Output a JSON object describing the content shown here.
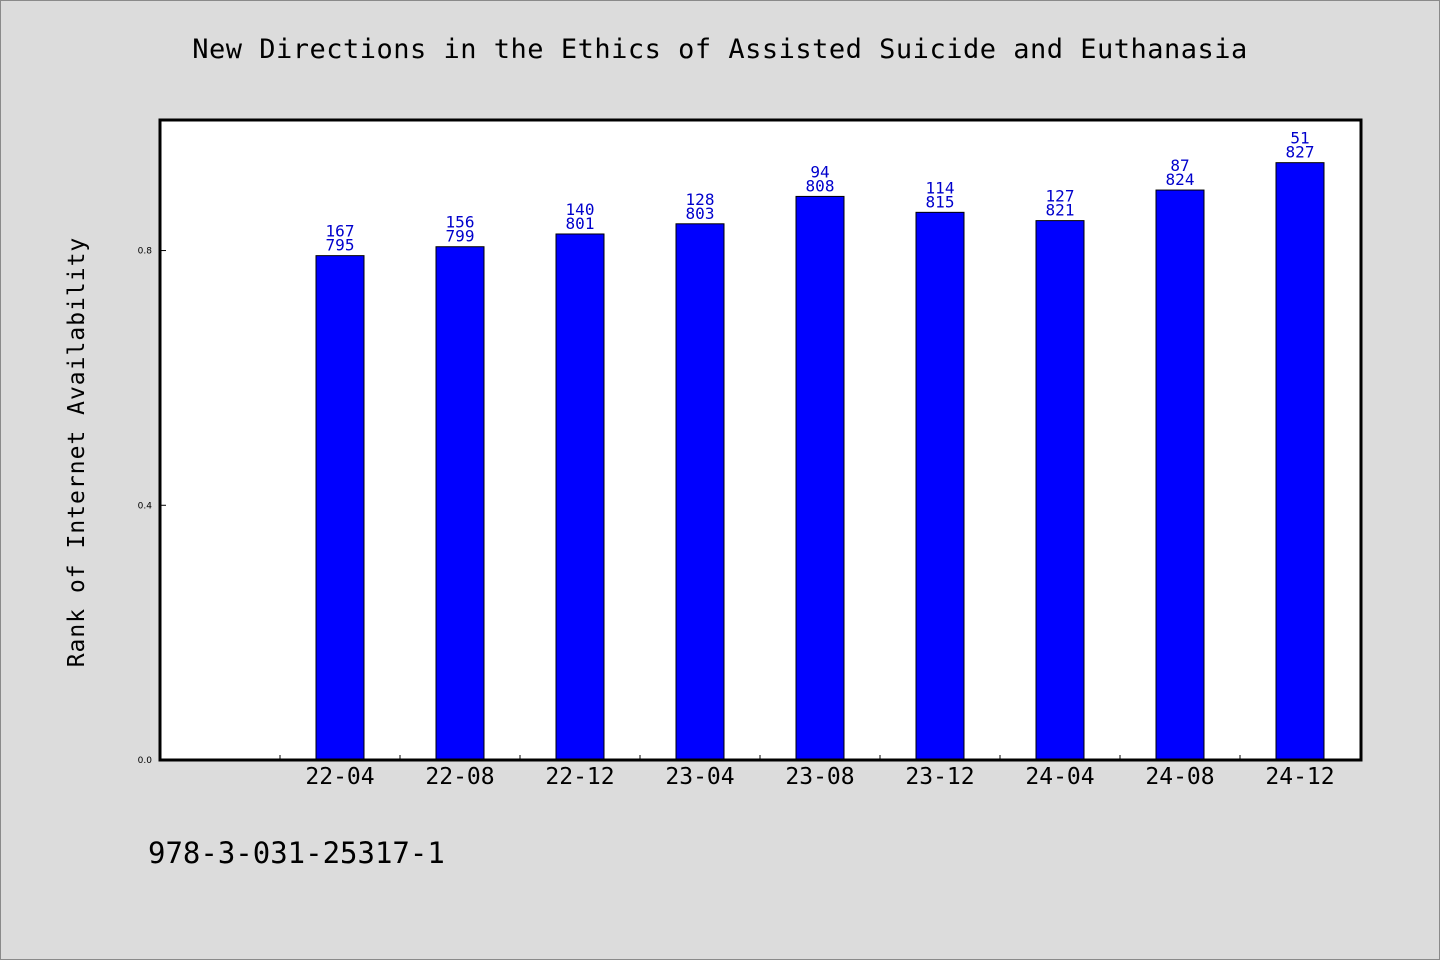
{
  "footer": {
    "code": "978-3-031-25317-1"
  },
  "chart_data": {
    "type": "bar",
    "title": "New Directions in the Ethics of Assisted Suicide and Euthanasia",
    "xlabel": "",
    "ylabel": "Rank of Internet Availability",
    "categories": [
      "22-04",
      "22-08",
      "22-12",
      "23-04",
      "23-08",
      "23-12",
      "24-04",
      "24-08",
      "24-12"
    ],
    "values": [
      0.795,
      0.799,
      0.801,
      0.803,
      0.808,
      0.815,
      0.821,
      0.824,
      0.827
    ],
    "bar_heights": [
      0.792,
      0.806,
      0.826,
      0.842,
      0.885,
      0.86,
      0.847,
      0.895,
      0.938
    ],
    "label_top": [
      "167",
      "156",
      "140",
      "128",
      "94",
      "114",
      "127",
      "87",
      "51"
    ],
    "label_bottom": [
      "795",
      "799",
      "801",
      "803",
      "808",
      "815",
      "821",
      "824",
      "827"
    ],
    "yticks": [
      "0.0",
      "0.4",
      "0.8"
    ],
    "ytick_values": [
      0.0,
      0.4,
      0.8
    ],
    "ylim": [
      0,
      1.005
    ],
    "grid": false,
    "legend": "none",
    "colors": {
      "bar": "#0000ff",
      "label": "#0000cc",
      "plot_bg": "#ffffff",
      "page_bg": "#dcdcdc"
    }
  }
}
